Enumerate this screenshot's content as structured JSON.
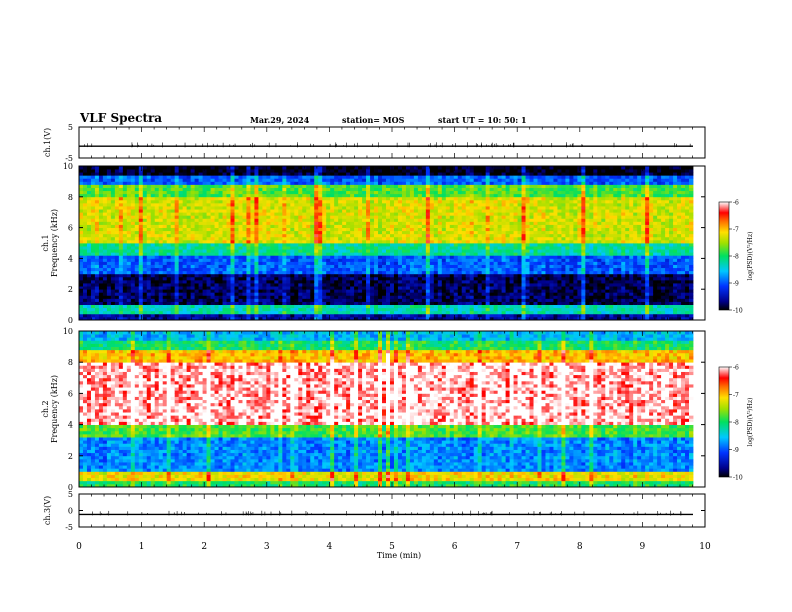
{
  "header": {
    "title": "VLF Spectra",
    "date": "Mar.29, 2024",
    "station": "station= MOS",
    "start": "start UT =  10: 50: 1"
  },
  "chart_data": [
    {
      "type": "line",
      "panel": "ch1-waveform",
      "ylabel": "ch.1(V)",
      "ylim": [
        -5,
        5
      ],
      "yticklabels": [
        "5",
        "-5"
      ],
      "x": [
        0,
        10
      ],
      "description_values": {
        "baseline": -1.2
      },
      "series": [
        {
          "values": [
            -1.2,
            -1.2
          ]
        }
      ]
    },
    {
      "type": "heatmap",
      "panel": "ch1-spectrogram",
      "ylabel": "ch.1\nFrequency (kHz)",
      "ylim": [
        0,
        10
      ],
      "yticks": [
        0,
        2,
        4,
        6,
        8,
        10
      ],
      "xlim": [
        0,
        9.85
      ],
      "colorbar": {
        "label": "log(PSD)(V²/Hz)",
        "range": [
          -10,
          -6
        ],
        "ticks": [
          "-6",
          "-7",
          "-8",
          "-9",
          "-10"
        ]
      },
      "bands": [
        {
          "from": 0,
          "to": 0.4,
          "level": -9.6
        },
        {
          "from": 0.4,
          "to": 1.0,
          "level": -8.3
        },
        {
          "from": 1.0,
          "to": 3.0,
          "level": -9.8
        },
        {
          "from": 3.0,
          "to": 4.2,
          "level": -9.0
        },
        {
          "from": 4.2,
          "to": 5.0,
          "level": -8.2
        },
        {
          "from": 5.0,
          "to": 8.0,
          "level": -7.3
        },
        {
          "from": 8.0,
          "to": 8.8,
          "level": -7.8
        },
        {
          "from": 8.8,
          "to": 9.4,
          "level": -9.0
        },
        {
          "from": 9.4,
          "to": 10,
          "level": -10
        }
      ]
    },
    {
      "type": "heatmap",
      "panel": "ch2-spectrogram",
      "ylabel": "ch.2\nFrequency (kHz)",
      "ylim": [
        0,
        10
      ],
      "yticks": [
        0,
        2,
        4,
        6,
        8,
        10
      ],
      "xlim": [
        0,
        9.85
      ],
      "colorbar": {
        "label": "log(PSD)(V²/Hz)",
        "range": [
          -10,
          -6
        ],
        "ticks": [
          "-6",
          "-7",
          "-8",
          "-9",
          "-10"
        ]
      },
      "bands": [
        {
          "from": 0,
          "to": 0.4,
          "level": -8.0
        },
        {
          "from": 0.4,
          "to": 1.0,
          "level": -7.2
        },
        {
          "from": 1.0,
          "to": 3.2,
          "level": -8.8
        },
        {
          "from": 3.2,
          "to": 4.0,
          "level": -7.8
        },
        {
          "from": 4.0,
          "to": 8.0,
          "level": -6.1
        },
        {
          "from": 8.0,
          "to": 8.8,
          "level": -7.0
        },
        {
          "from": 8.8,
          "to": 9.5,
          "level": -8.0
        },
        {
          "from": 9.5,
          "to": 10,
          "level": -8.6
        }
      ]
    },
    {
      "type": "line",
      "panel": "ch3-waveform",
      "ylabel": "ch.3(V)",
      "ylim": [
        -5,
        5
      ],
      "yticklabels": [
        "5",
        "0",
        "-5"
      ],
      "x": [
        0,
        10
      ],
      "xlabel": "Time (min)",
      "xticks": [
        "0",
        "1",
        "2",
        "3",
        "4",
        "5",
        "6",
        "7",
        "8",
        "9",
        "10"
      ],
      "series": [
        {
          "values": [
            -1.2,
            -1.2
          ]
        }
      ]
    }
  ]
}
